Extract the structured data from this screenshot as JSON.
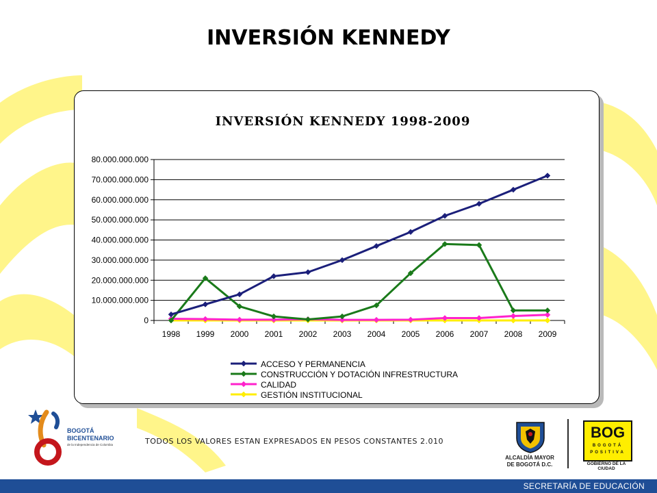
{
  "slide": {
    "title": "INVERSIÓN KENNEDY",
    "footnote": "TODOS LOS VALORES ESTAN EXPRESADOS EN PESOS CONSTANTES 2.010",
    "bottom_bar": "SECRETARÍA DE EDUCACIÓN"
  },
  "logos": {
    "bicentenario": {
      "line1": "BOGOTÁ",
      "line2": "BICENTENARIO",
      "line3": "de la Independencia de Colombia"
    },
    "alcaldia": {
      "line1": "ALCALDÍA MAYOR",
      "line2": "DE BOGOTÁ D.C."
    },
    "bog": {
      "main": "BOG",
      "line1": "BOGOTÁ",
      "line2": "POSITIVA",
      "tagline": "GOBIERNO DE LA CIUDAD"
    }
  },
  "colors": {
    "decor_yellow": "#fff58a",
    "bar_blue": "#1f4e96",
    "bog_yellow": "#ffee00"
  },
  "chart_data": {
    "type": "line",
    "title": "INVERSIÓN KENNEDY 1998-2009",
    "xlabel": "",
    "ylabel": "",
    "categories": [
      "1998",
      "1999",
      "2000",
      "2001",
      "2002",
      "2003",
      "2004",
      "2005",
      "2006",
      "2007",
      "2008",
      "2009"
    ],
    "ylim": [
      0,
      80000000000
    ],
    "yticks": [
      0,
      10000000000,
      20000000000,
      30000000000,
      40000000000,
      50000000000,
      60000000000,
      70000000000,
      80000000000
    ],
    "ytick_labels": [
      "0",
      "10.000.000.000",
      "20.000.000.000",
      "30.000.000.000",
      "40.000.000.000",
      "50.000.000.000",
      "60.000.000.000",
      "70.000.000.000",
      "80.000.000.000"
    ],
    "grid": "horizontal",
    "legend_position": "bottom",
    "series": [
      {
        "name": "ACCESO Y PERMANENCIA",
        "color": "#1b1f7a",
        "marker": "diamond",
        "values": [
          3000000000,
          8000000000,
          13000000000,
          22000000000,
          24000000000,
          30000000000,
          37000000000,
          44000000000,
          52000000000,
          58000000000,
          65000000000,
          72000000000
        ]
      },
      {
        "name": "CONSTRUCCIÓN Y DOTACIÓN INFRESTRUCTURA",
        "color": "#1a7a1a",
        "marker": "diamond",
        "values": [
          0,
          21000000000,
          7000000000,
          2000000000,
          500000000,
          2000000000,
          7500000000,
          23500000000,
          38000000000,
          37500000000,
          5000000000,
          5000000000
        ]
      },
      {
        "name": "CALIDAD",
        "color": "#ff22cc",
        "marker": "diamond",
        "values": [
          800000000,
          700000000,
          400000000,
          400000000,
          600000000,
          300000000,
          300000000,
          400000000,
          1200000000,
          1200000000,
          2200000000,
          2800000000
        ]
      },
      {
        "name": "GESTIÓN INSTITUCIONAL",
        "color": "#ffee00",
        "marker": "diamond",
        "values": [
          0,
          0,
          0,
          0,
          0,
          0,
          0,
          0,
          0,
          0,
          0,
          0
        ]
      }
    ]
  }
}
